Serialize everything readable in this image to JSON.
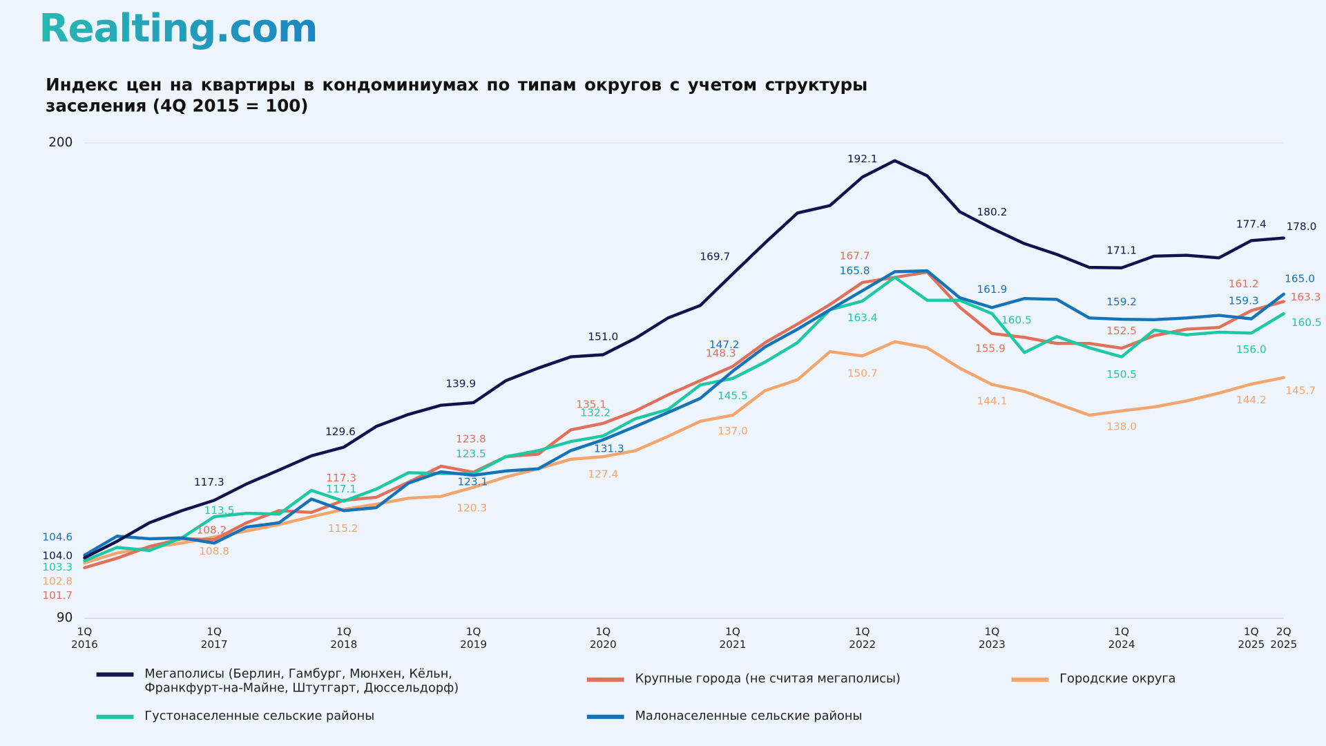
{
  "logo": "Realting.com",
  "chart_data": {
    "type": "line",
    "title": "Индекс цен на квартиры в кондоминиумах по типам округов с учетом структуры заселения (4Q 2015 = 100)",
    "categories": [
      "1Q 2016",
      null,
      null,
      null,
      "1Q 2017",
      null,
      null,
      null,
      "1Q 2018",
      null,
      null,
      null,
      "1Q 2019",
      null,
      null,
      null,
      "1Q 2020",
      null,
      null,
      null,
      "1Q 2021",
      null,
      null,
      null,
      "1Q 2022",
      null,
      null,
      null,
      "1Q 2023",
      null,
      null,
      null,
      "1Q 2024",
      null,
      null,
      null,
      "1Q 2025",
      "2Q 2025"
    ],
    "ylim": [
      90,
      200
    ],
    "yticks": [
      90,
      200
    ],
    "grid": true,
    "series": [
      {
        "name": "Мегаполисы (Берлин, Гамбург, Мюнхен, Кёльн, Франкфурт-на-Майне, Штутгарт, Дюссельдорф)",
        "color": "#13124e",
        "values": [
          104.0,
          107.8,
          112.1,
          114.9,
          117.3,
          121.1,
          124.3,
          127.6,
          129.6,
          134.4,
          137.2,
          139.3,
          139.9,
          145.0,
          147.9,
          150.5,
          151.0,
          154.8,
          159.5,
          162.4,
          169.7,
          176.9,
          183.8,
          185.5,
          192.1,
          195.9,
          192.4,
          184.1,
          180.2,
          176.7,
          174.2,
          171.2,
          171.1,
          173.8,
          174.0,
          173.4,
          177.4,
          178.0
        ],
        "value_labels": [
          "104.0",
          null,
          null,
          null,
          "117.3",
          null,
          null,
          null,
          "129.6",
          null,
          null,
          null,
          "139.9",
          null,
          null,
          null,
          "151.0",
          null,
          null,
          null,
          "169.7",
          null,
          null,
          null,
          "192.1",
          null,
          null,
          null,
          "180.2",
          null,
          null,
          null,
          "171.1",
          null,
          null,
          null,
          "177.4",
          "178.0"
        ]
      },
      {
        "name": "Крупные города (не считая мегаполисы)",
        "color": "#e07059",
        "values": [
          101.7,
          103.9,
          106.6,
          108.4,
          108.2,
          112.1,
          114.9,
          114.5,
          117.3,
          118.0,
          121.5,
          125.2,
          123.8,
          127.4,
          128.0,
          133.6,
          135.1,
          138.0,
          141.7,
          145.0,
          148.3,
          153.8,
          158.1,
          162.6,
          167.7,
          168.9,
          170.1,
          162.0,
          155.9,
          155.0,
          153.6,
          153.6,
          152.5,
          155.4,
          156.9,
          157.3,
          161.2,
          163.3
        ],
        "value_labels": [
          "101.7",
          null,
          null,
          null,
          "108.2",
          null,
          null,
          null,
          "117.3",
          null,
          null,
          null,
          "123.8",
          null,
          null,
          null,
          "135.1",
          null,
          null,
          null,
          "148.3",
          null,
          null,
          null,
          "167.7",
          null,
          null,
          null,
          "155.9",
          null,
          null,
          null,
          "152.5",
          null,
          null,
          null,
          "161.2",
          "163.3"
        ]
      },
      {
        "name": "Городские округа",
        "color": "#f2a66e",
        "values": [
          102.8,
          105.1,
          106.4,
          107.4,
          108.8,
          110.2,
          111.7,
          113.5,
          115.2,
          116.4,
          117.8,
          118.2,
          120.3,
          122.7,
          124.6,
          126.8,
          127.4,
          128.8,
          132.1,
          135.6,
          137.0,
          142.7,
          145.2,
          151.7,
          150.7,
          154.0,
          152.6,
          147.9,
          144.1,
          142.5,
          139.7,
          137.0,
          138.0,
          138.9,
          140.3,
          142.1,
          144.2,
          145.7
        ],
        "value_labels": [
          "102.8",
          null,
          null,
          null,
          "108.8",
          null,
          null,
          null,
          "115.2",
          null,
          null,
          null,
          "120.3",
          null,
          null,
          null,
          "127.4",
          null,
          null,
          null,
          "137.0",
          null,
          null,
          null,
          "150.7",
          null,
          null,
          null,
          "144.1",
          null,
          null,
          null,
          "138.0",
          null,
          null,
          null,
          "144.2",
          "145.7"
        ]
      },
      {
        "name": "Густонаселенные сельские районы",
        "color": "#1dc9a4",
        "values": [
          103.3,
          106.4,
          105.7,
          108.6,
          113.5,
          114.3,
          114.1,
          119.6,
          117.1,
          119.9,
          123.7,
          123.5,
          123.5,
          127.4,
          128.8,
          130.9,
          132.2,
          136.2,
          138.3,
          144.0,
          145.5,
          149.3,
          153.8,
          161.4,
          163.4,
          168.9,
          163.6,
          163.6,
          160.5,
          151.5,
          155.2,
          152.6,
          150.5,
          156.7,
          155.6,
          156.2,
          156.0,
          160.5
        ],
        "value_labels": [
          "103.3",
          null,
          null,
          null,
          "113.5",
          null,
          null,
          null,
          "117.1",
          null,
          null,
          null,
          "123.5",
          null,
          null,
          null,
          "132.2",
          null,
          null,
          null,
          "145.5",
          null,
          null,
          null,
          "163.4",
          null,
          null,
          null,
          "160.5",
          null,
          null,
          null,
          "150.5",
          null,
          null,
          null,
          "156.0",
          "160.5"
        ]
      },
      {
        "name": "Малонаселенные сельские районы",
        "color": "#1473b9",
        "values": [
          104.6,
          109.0,
          108.4,
          108.6,
          107.4,
          111.1,
          112.1,
          117.6,
          114.9,
          115.6,
          121.3,
          123.9,
          123.1,
          124.1,
          124.6,
          128.8,
          131.3,
          134.4,
          137.6,
          140.9,
          147.2,
          152.8,
          156.9,
          161.4,
          165.8,
          170.2,
          170.4,
          164.2,
          161.9,
          164.0,
          163.8,
          159.5,
          159.2,
          159.1,
          159.5,
          160.1,
          159.3,
          165.0
        ],
        "value_labels": [
          "104.6",
          null,
          null,
          null,
          null,
          null,
          null,
          null,
          null,
          null,
          null,
          null,
          "123.1",
          null,
          null,
          null,
          "131.3",
          null,
          null,
          null,
          "147.2",
          null,
          null,
          null,
          "165.8",
          null,
          null,
          null,
          "161.9",
          null,
          null,
          null,
          "159.2",
          null,
          null,
          null,
          "159.3",
          "165.0"
        ]
      }
    ]
  }
}
